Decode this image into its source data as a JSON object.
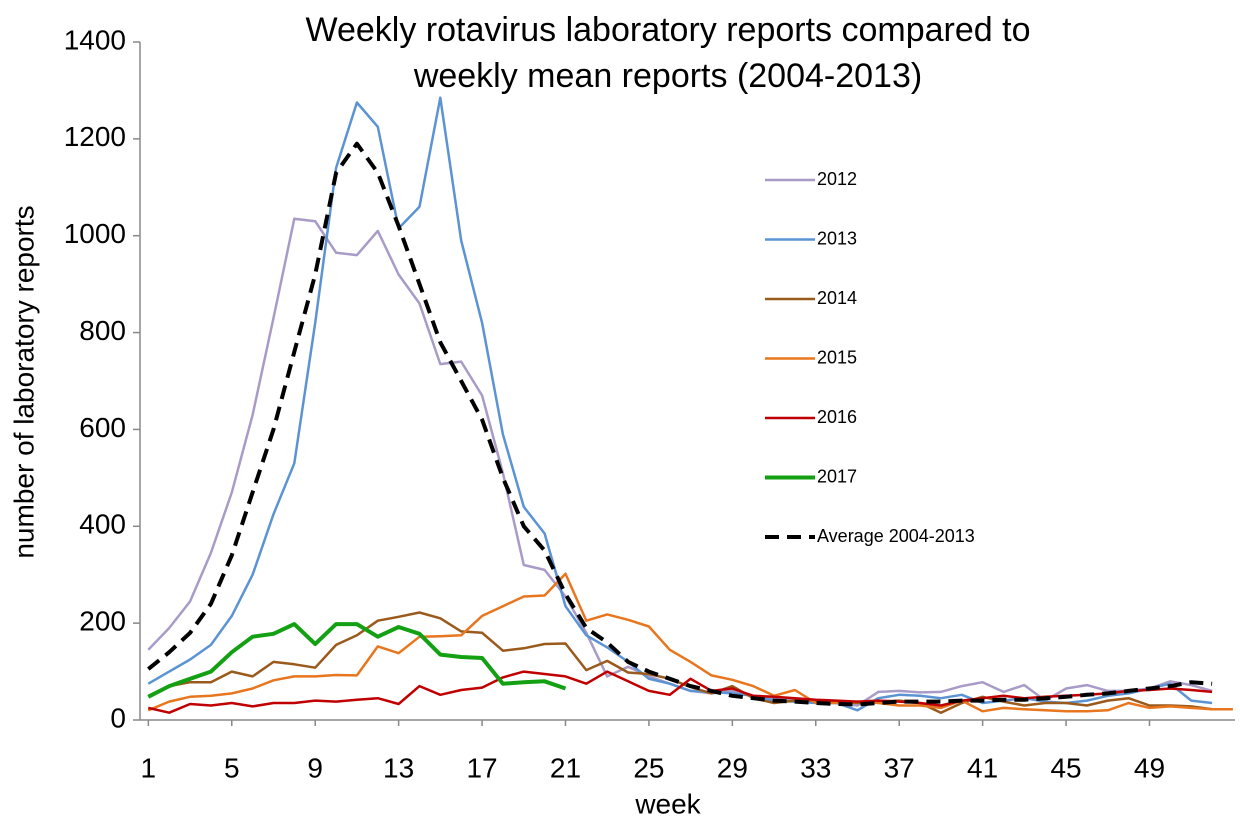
{
  "chart_data": {
    "type": "line",
    "title": [
      "Weekly rotavirus laboratory reports compared to",
      "weekly mean reports (2004-2013)"
    ],
    "x_label": "week",
    "y_label": "number of laboratory reports",
    "x": [
      1,
      2,
      3,
      4,
      5,
      6,
      7,
      8,
      9,
      10,
      11,
      12,
      13,
      14,
      15,
      16,
      17,
      18,
      19,
      20,
      21,
      22,
      23,
      24,
      25,
      26,
      27,
      28,
      29,
      30,
      31,
      32,
      33,
      34,
      35,
      36,
      37,
      38,
      39,
      40,
      41,
      42,
      43,
      44,
      45,
      46,
      47,
      48,
      49,
      50,
      51,
      52,
      53
    ],
    "xlim": [
      0.6,
      53.1
    ],
    "xticks": [
      1,
      5,
      9,
      13,
      17,
      21,
      25,
      29,
      33,
      37,
      41,
      45,
      49
    ],
    "ylim": [
      0,
      1400
    ],
    "yticks": [
      0,
      200,
      400,
      600,
      800,
      1000,
      1200,
      1400
    ],
    "grid": false,
    "series": [
      {
        "name": "2012",
        "color": "#a99bc8",
        "values": [
          145,
          190,
          245,
          345,
          470,
          630,
          830,
          1035,
          1030,
          965,
          960,
          1010,
          920,
          860,
          735,
          740,
          670,
          510,
          320,
          310,
          255,
          180,
          90,
          110,
          90,
          75,
          60,
          55,
          60,
          50,
          45,
          40,
          40,
          35,
          30,
          58,
          60,
          57,
          58,
          70,
          78,
          58,
          72,
          40,
          65,
          72,
          60,
          60,
          65,
          80,
          72,
          60,
          null
        ]
      },
      {
        "name": "2013",
        "color": "#5b93d3",
        "values": [
          75,
          100,
          125,
          155,
          215,
          300,
          425,
          530,
          820,
          1140,
          1275,
          1225,
          1015,
          1060,
          1285,
          990,
          820,
          590,
          440,
          385,
          235,
          175,
          150,
          120,
          85,
          75,
          60,
          58,
          55,
          50,
          40,
          38,
          35,
          35,
          20,
          45,
          52,
          50,
          45,
          52,
          35,
          40,
          45,
          38,
          35,
          40,
          50,
          55,
          65,
          75,
          40,
          35,
          null
        ]
      },
      {
        "name": "2014",
        "color": "#9a5a1c",
        "values": [
          50,
          70,
          78,
          78,
          100,
          90,
          120,
          115,
          108,
          155,
          175,
          205,
          213,
          222,
          210,
          183,
          180,
          143,
          148,
          157,
          158,
          103,
          122,
          98,
          95,
          85,
          68,
          55,
          70,
          45,
          35,
          40,
          40,
          38,
          35,
          38,
          40,
          35,
          15,
          35,
          48,
          38,
          30,
          35,
          35,
          30,
          40,
          45,
          30,
          30,
          28,
          22,
          null
        ]
      },
      {
        "name": "2015",
        "color": "#e8761f",
        "values": [
          20,
          38,
          48,
          50,
          55,
          65,
          82,
          90,
          90,
          93,
          92,
          152,
          138,
          172,
          173,
          175,
          215,
          235,
          255,
          257,
          302,
          205,
          218,
          207,
          193,
          145,
          120,
          92,
          83,
          70,
          50,
          62,
          35,
          35,
          38,
          35,
          30,
          30,
          25,
          40,
          18,
          25,
          22,
          20,
          18,
          18,
          20,
          35,
          25,
          28,
          25,
          22,
          22
        ]
      },
      {
        "name": "2016",
        "color": "#c00000",
        "values": [
          25,
          15,
          33,
          30,
          35,
          28,
          35,
          35,
          40,
          38,
          42,
          45,
          33,
          70,
          52,
          62,
          67,
          88,
          100,
          95,
          90,
          75,
          100,
          80,
          60,
          52,
          85,
          60,
          65,
          50,
          48,
          45,
          42,
          40,
          38,
          40,
          38,
          35,
          30,
          40,
          45,
          50,
          45,
          48,
          50,
          52,
          55,
          60,
          62,
          65,
          62,
          58,
          null
        ]
      },
      {
        "name": "2017",
        "color": "#13a013",
        "emphasis": true,
        "values": [
          48,
          70,
          85,
          100,
          140,
          172,
          178,
          198,
          157,
          198,
          198,
          172,
          192,
          178,
          135,
          130,
          128,
          75,
          78,
          80,
          65,
          null,
          null,
          null,
          null,
          null,
          null,
          null,
          null,
          null,
          null,
          null,
          null,
          null,
          null,
          null,
          null,
          null,
          null,
          null,
          null,
          null,
          null,
          null,
          null,
          null,
          null,
          null,
          null,
          null,
          null,
          null,
          null
        ]
      },
      {
        "name": "Average 2004-2013",
        "color": "#000000",
        "emphasis": true,
        "dash": true,
        "values": [
          105,
          140,
          180,
          240,
          340,
          470,
          600,
          760,
          920,
          1130,
          1190,
          1130,
          1020,
          900,
          780,
          700,
          620,
          500,
          400,
          350,
          260,
          190,
          160,
          120,
          100,
          85,
          70,
          60,
          50,
          45,
          40,
          38,
          35,
          33,
          32,
          35,
          38,
          38,
          38,
          40,
          40,
          42,
          42,
          45,
          48,
          52,
          55,
          60,
          65,
          70,
          78,
          75,
          null
        ]
      }
    ]
  }
}
